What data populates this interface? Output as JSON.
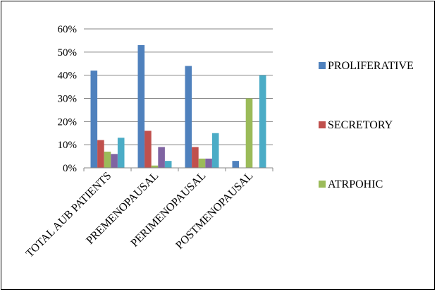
{
  "chart_data": {
    "type": "bar",
    "categories": [
      "TOTAL AUB PATIENTS",
      "PREMENOPAUSAL",
      "PERIMENOPAUSAL",
      "POSTMENOPAUSAL"
    ],
    "series": [
      {
        "name": "PROLIFERATIVE",
        "color": "#4F81BD",
        "values": [
          42,
          53,
          44,
          3
        ]
      },
      {
        "name": "SECRETORY",
        "color": "#C0504D",
        "values": [
          12,
          16,
          9,
          0
        ]
      },
      {
        "name": "ATRPOHIC",
        "color": "#9BBB59",
        "values": [
          7,
          1,
          4,
          30
        ]
      },
      {
        "color": "#8064A2",
        "values": [
          6,
          9,
          4,
          0
        ]
      },
      {
        "color": "#4BACC6",
        "values": [
          13,
          3,
          15,
          40
        ]
      }
    ],
    "y_ticks": [
      "0%",
      "10%",
      "20%",
      "30%",
      "40%",
      "50%",
      "60%"
    ],
    "ylim": [
      0,
      60
    ],
    "y_unit": "%",
    "grid": true,
    "legend": "right"
  }
}
